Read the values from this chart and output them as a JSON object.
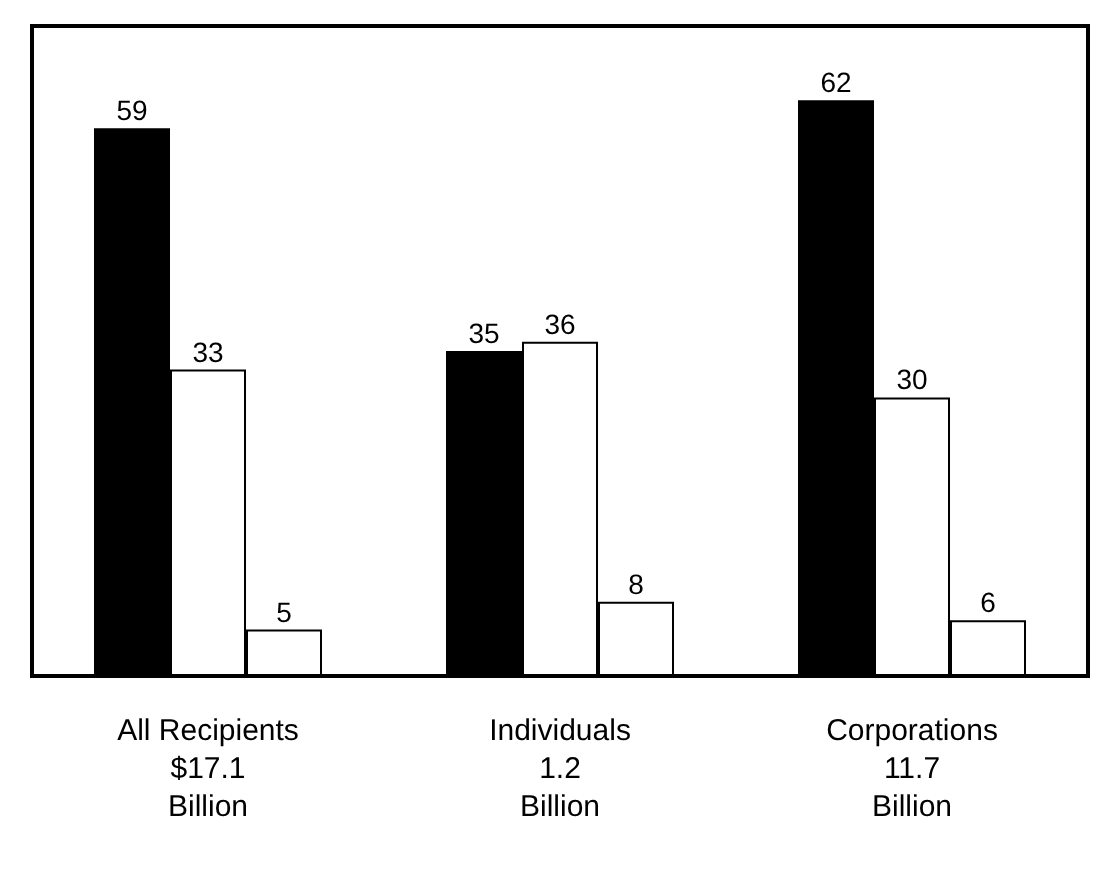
{
  "chart_data": {
    "type": "bar",
    "categories": [
      "All Recipients\n$17.1\nBillion",
      "Individuals\n1.2\nBillion",
      "Corporations\n11.7\nBillion"
    ],
    "series": [
      {
        "color": "#000000",
        "values": [
          59,
          35,
          62
        ]
      },
      {
        "color": "#ffffff",
        "values": [
          33,
          36,
          30
        ]
      },
      {
        "color": "#ffffff",
        "values": [
          5,
          8,
          6
        ]
      }
    ],
    "data_labels": true,
    "tick_labels": "x",
    "grid": false
  }
}
